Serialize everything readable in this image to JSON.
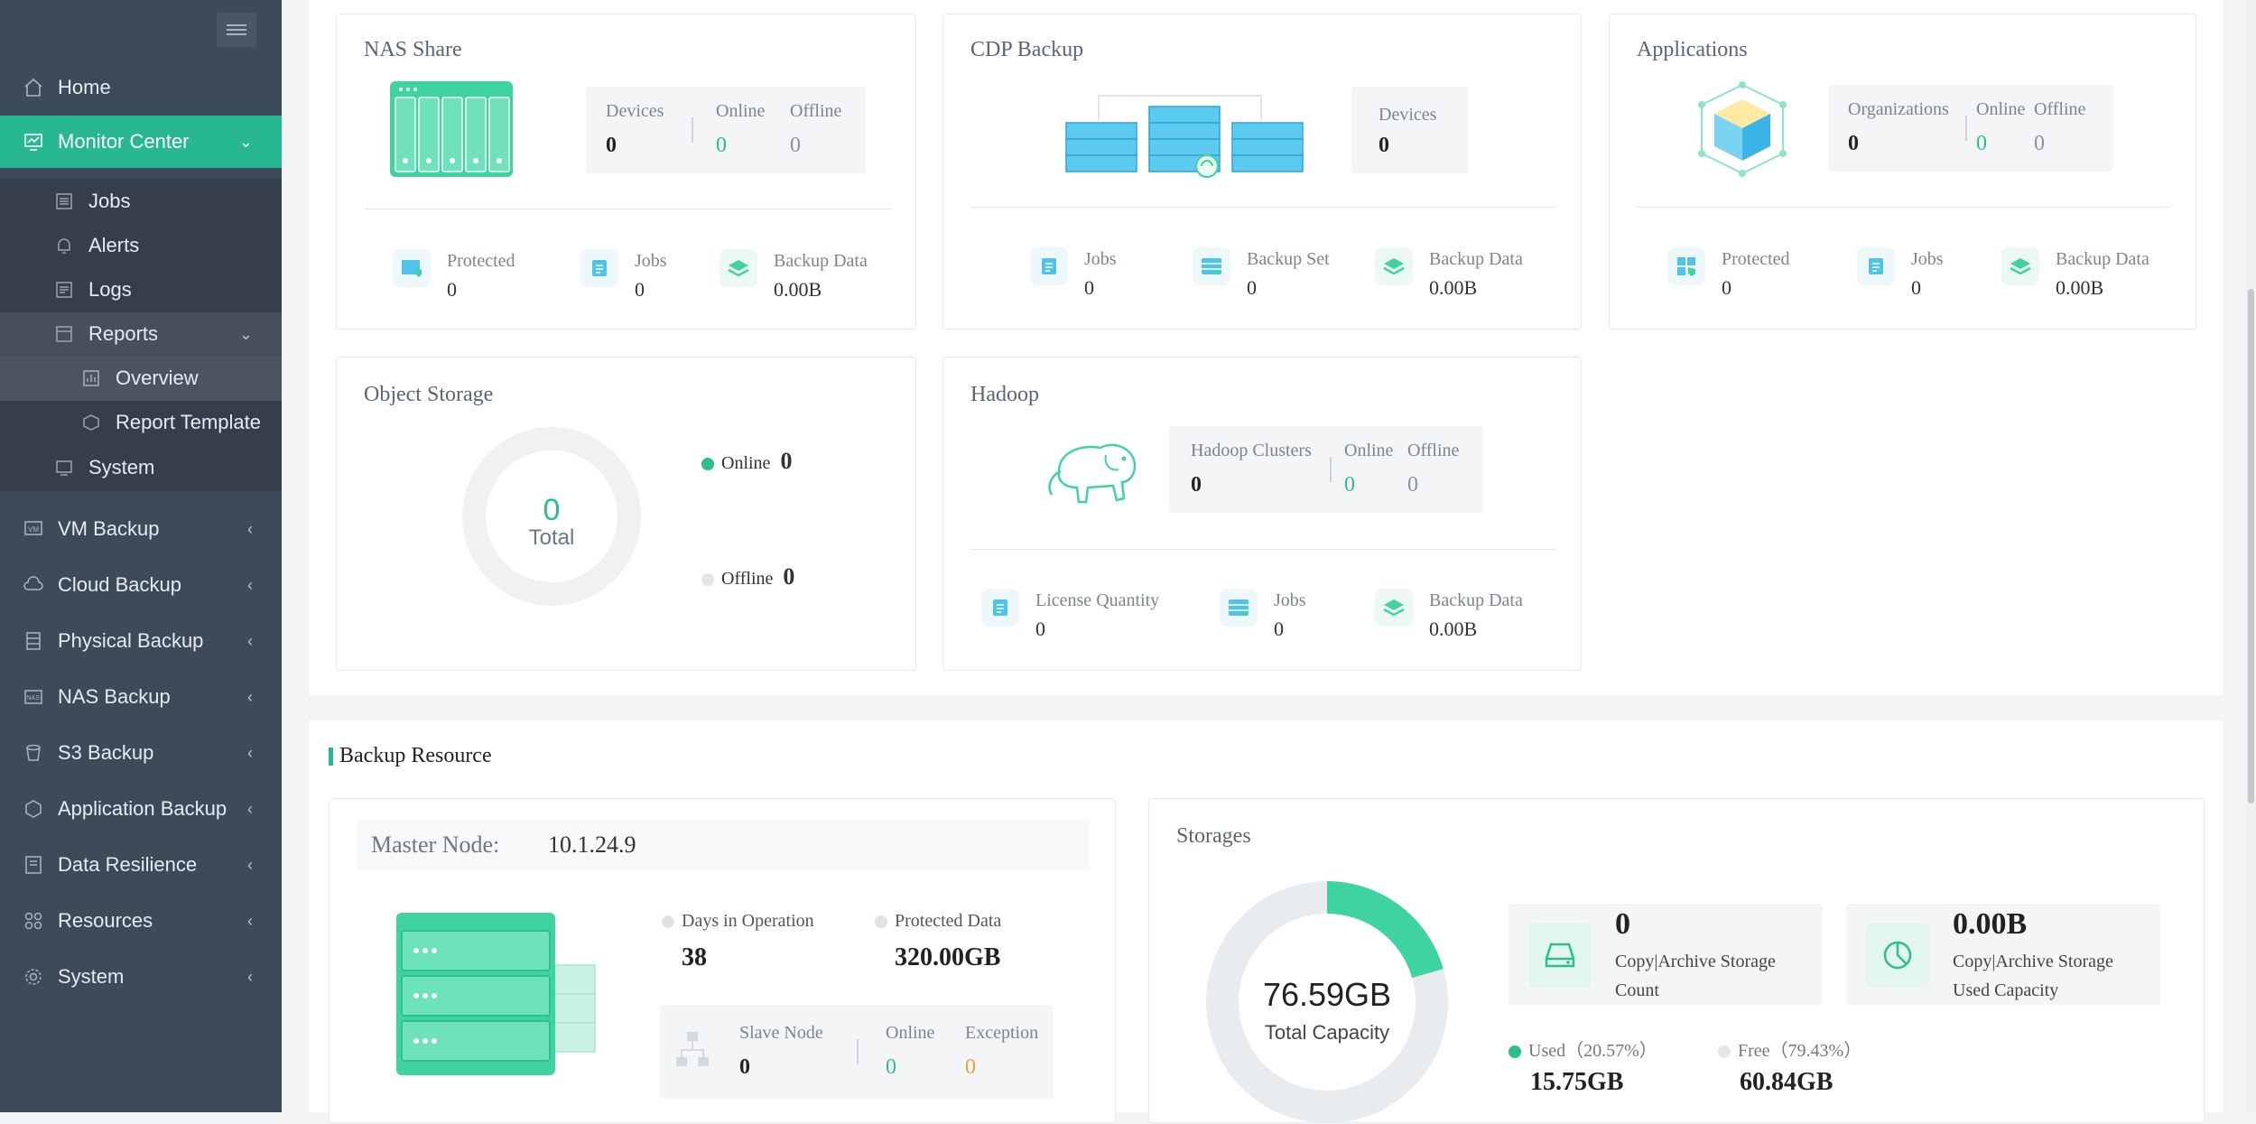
{
  "sidebar": {
    "items": [
      {
        "label": "Home"
      },
      {
        "label": "Monitor Center"
      },
      {
        "label": "Jobs"
      },
      {
        "label": "Alerts"
      },
      {
        "label": "Logs"
      },
      {
        "label": "Reports"
      },
      {
        "label": "Overview"
      },
      {
        "label": "Report Template"
      },
      {
        "label": "System"
      },
      {
        "label": "VM Backup"
      },
      {
        "label": "Cloud Backup"
      },
      {
        "label": "Physical Backup"
      },
      {
        "label": "NAS Backup"
      },
      {
        "label": "S3 Backup"
      },
      {
        "label": "Application Backup"
      },
      {
        "label": "Data Resilience"
      },
      {
        "label": "Resources"
      },
      {
        "label": "System"
      }
    ]
  },
  "nas_share": {
    "title": "NAS Share",
    "devices_label": "Devices",
    "devices": "0",
    "online_label": "Online",
    "online": "0",
    "offline_label": "Offline",
    "offline": "0",
    "protected_label": "Protected",
    "protected": "0",
    "jobs_label": "Jobs",
    "jobs": "0",
    "backup_data_label": "Backup Data",
    "backup_data": "0.00B"
  },
  "cdp_backup": {
    "title": "CDP Backup",
    "devices_label": "Devices",
    "devices": "0",
    "jobs_label": "Jobs",
    "jobs": "0",
    "backup_set_label": "Backup Set",
    "backup_set": "0",
    "backup_data_label": "Backup Data",
    "backup_data": "0.00B"
  },
  "applications": {
    "title": "Applications",
    "organizations_label": "Organizations",
    "organizations": "0",
    "online_label": "Online",
    "online": "0",
    "offline_label": "Offline",
    "offline": "0",
    "protected_label": "Protected",
    "protected": "0",
    "jobs_label": "Jobs",
    "jobs": "0",
    "backup_data_label": "Backup Data",
    "backup_data": "0.00B"
  },
  "object_storage": {
    "title": "Object Storage",
    "total": "0",
    "total_label": "Total",
    "online_label": "Online",
    "online": "0",
    "offline_label": "Offline",
    "offline": "0"
  },
  "hadoop": {
    "title": "Hadoop",
    "clusters_label": "Hadoop Clusters",
    "clusters": "0",
    "online_label": "Online",
    "online": "0",
    "offline_label": "Offline",
    "offline": "0",
    "license_label": "License Quantity",
    "license": "0",
    "jobs_label": "Jobs",
    "jobs": "0",
    "backup_data_label": "Backup Data",
    "backup_data": "0.00B"
  },
  "backup_resource": {
    "title": "Backup Resource",
    "master_label": "Master Node:",
    "master_ip": "10.1.24.9",
    "days_label": "Days in Operation",
    "days": "38",
    "protected_label": "Protected Data",
    "protected": "320.00GB",
    "slave_label": "Slave Node",
    "slave": "0",
    "online_label": "Online",
    "online": "0",
    "exception_label": "Exception",
    "exception": "0"
  },
  "storages": {
    "title": "Storages",
    "total": "76.59GB",
    "total_label": "Total Capacity",
    "used_fraction": 0.2057,
    "count": "0",
    "count_label": "Copy|Archive Storage Count",
    "used_cap": "0.00B",
    "used_cap_label": "Copy|Archive Storage Used Capacity",
    "used_label": "Used（20.57%）",
    "used": "15.75GB",
    "free_label": "Free（79.43%）",
    "free": "60.84GB"
  },
  "colors": {
    "accent": "#27b892",
    "sidebar": "#3d4a59",
    "exception": "#e6a23c"
  }
}
